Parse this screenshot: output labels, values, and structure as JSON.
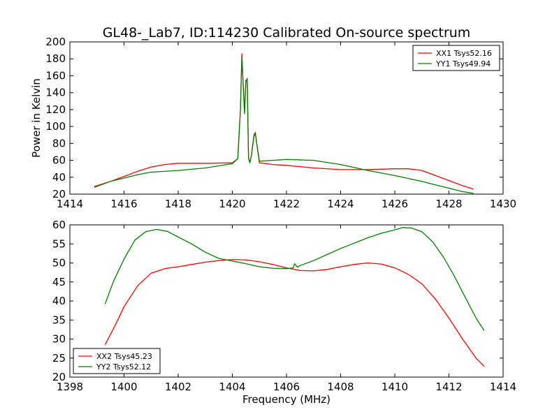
{
  "figure": {
    "title": "GL48-_Lab7, ID:114230 Calibrated On-source spectrum"
  },
  "chart_data": [
    {
      "type": "line",
      "title": "GL48-_Lab7, ID:114230 Calibrated On-source spectrum",
      "xlabel": "",
      "ylabel": "Power in Kelvin",
      "xlim": [
        1414,
        1430
      ],
      "ylim": [
        20,
        200
      ],
      "xticks": [
        "1414",
        "1416",
        "1418",
        "1420",
        "1422",
        "1424",
        "1426",
        "1428",
        "1430"
      ],
      "yticks": [
        "20",
        "40",
        "60",
        "80",
        "100",
        "120",
        "140",
        "160",
        "180",
        "200"
      ],
      "legend": "top-right",
      "series": [
        {
          "name": "XX1 Tsys52.16",
          "color": "#ff0000",
          "x": [
            1414.9,
            1415.5,
            1416.0,
            1416.5,
            1417.0,
            1417.5,
            1418.0,
            1419.0,
            1420.0,
            1420.2,
            1420.3,
            1420.35,
            1420.4,
            1420.45,
            1420.5,
            1420.55,
            1420.6,
            1420.65,
            1420.7,
            1420.8,
            1420.85,
            1420.9,
            1421.0,
            1421.5,
            1422.0,
            1423.0,
            1424.0,
            1425.0,
            1425.5,
            1426.0,
            1426.5,
            1427.0,
            1427.5,
            1428.0,
            1428.5,
            1428.9
          ],
          "y": [
            29,
            35,
            41,
            47,
            52,
            55,
            56.5,
            56.5,
            57,
            62,
            120,
            186,
            150,
            118,
            155,
            154,
            62,
            58,
            65,
            90,
            93,
            80,
            57,
            55,
            54,
            51,
            49,
            49,
            49.5,
            50,
            50,
            48,
            42,
            36,
            30,
            26
          ]
        },
        {
          "name": "YY1 Tsys49.94",
          "color": "#008000",
          "x": [
            1414.9,
            1415.5,
            1416.0,
            1416.5,
            1417.0,
            1418.0,
            1419.0,
            1420.0,
            1420.2,
            1420.3,
            1420.35,
            1420.4,
            1420.45,
            1420.5,
            1420.55,
            1420.6,
            1420.65,
            1420.7,
            1420.8,
            1420.85,
            1420.9,
            1421.0,
            1421.5,
            1422.0,
            1423.0,
            1424.0,
            1425.0,
            1426.0,
            1427.0,
            1427.5,
            1428.0,
            1428.5,
            1428.9
          ],
          "y": [
            28,
            35,
            39,
            43,
            46,
            48,
            51,
            56,
            62,
            120,
            182,
            150,
            115,
            152,
            157,
            62,
            57,
            65,
            88,
            92,
            80,
            59,
            60,
            61,
            60,
            55,
            48,
            42,
            35,
            31,
            27,
            23,
            21
          ]
        }
      ]
    },
    {
      "type": "line",
      "title": "",
      "xlabel": "Frequency (MHz)",
      "ylabel": "",
      "xlim": [
        1398,
        1414
      ],
      "ylim": [
        20,
        60
      ],
      "xticks": [
        "1398",
        "1400",
        "1402",
        "1404",
        "1406",
        "1408",
        "1410",
        "1412",
        "1414"
      ],
      "yticks": [
        "20",
        "25",
        "30",
        "35",
        "40",
        "45",
        "50",
        "55",
        "60"
      ],
      "legend": "bottom-left",
      "series": [
        {
          "name": "XX2 Tsys45.23",
          "color": "#ff0000",
          "x": [
            1399.3,
            1399.7,
            1400.0,
            1400.5,
            1401.0,
            1401.5,
            1402.0,
            1402.5,
            1403.0,
            1403.5,
            1404.0,
            1404.5,
            1405.0,
            1405.5,
            1406.0,
            1406.5,
            1407.0,
            1407.5,
            1408.0,
            1408.5,
            1409.0,
            1409.5,
            1410.0,
            1410.5,
            1411.0,
            1411.5,
            1412.0,
            1412.5,
            1413.0,
            1413.3
          ],
          "y": [
            28.5,
            34,
            38.5,
            44,
            47.3,
            48.5,
            49,
            49.6,
            50.2,
            50.6,
            50.9,
            50.8,
            50.3,
            49.6,
            48.7,
            48.0,
            47.9,
            48.3,
            49.0,
            49.6,
            50.0,
            49.7,
            48.7,
            47.0,
            44.5,
            40.5,
            35.5,
            30,
            25,
            22.8
          ]
        },
        {
          "name": "YY2 Tsys52.12",
          "color": "#008000",
          "x": [
            1399.3,
            1399.6,
            1400.0,
            1400.4,
            1400.8,
            1401.2,
            1401.6,
            1402.0,
            1402.5,
            1403.0,
            1403.5,
            1404.0,
            1404.5,
            1405.0,
            1405.5,
            1406.0,
            1406.25,
            1406.3,
            1406.4,
            1406.5,
            1407.0,
            1407.5,
            1408.0,
            1408.5,
            1409.0,
            1409.5,
            1410.0,
            1410.3,
            1410.6,
            1411.0,
            1411.4,
            1411.8,
            1412.2,
            1412.6,
            1413.0,
            1413.3
          ],
          "y": [
            39.2,
            45,
            51,
            56,
            58.2,
            58.8,
            58.3,
            56.8,
            55,
            52.8,
            51.2,
            50.5,
            49.8,
            49.0,
            48.6,
            48.5,
            48.7,
            49.8,
            48.9,
            49.3,
            50.6,
            52.2,
            53.8,
            55.2,
            56.6,
            57.8,
            58.7,
            59.3,
            59.2,
            58.2,
            55.5,
            51.5,
            46.5,
            41,
            35.5,
            32.2
          ]
        }
      ]
    }
  ]
}
